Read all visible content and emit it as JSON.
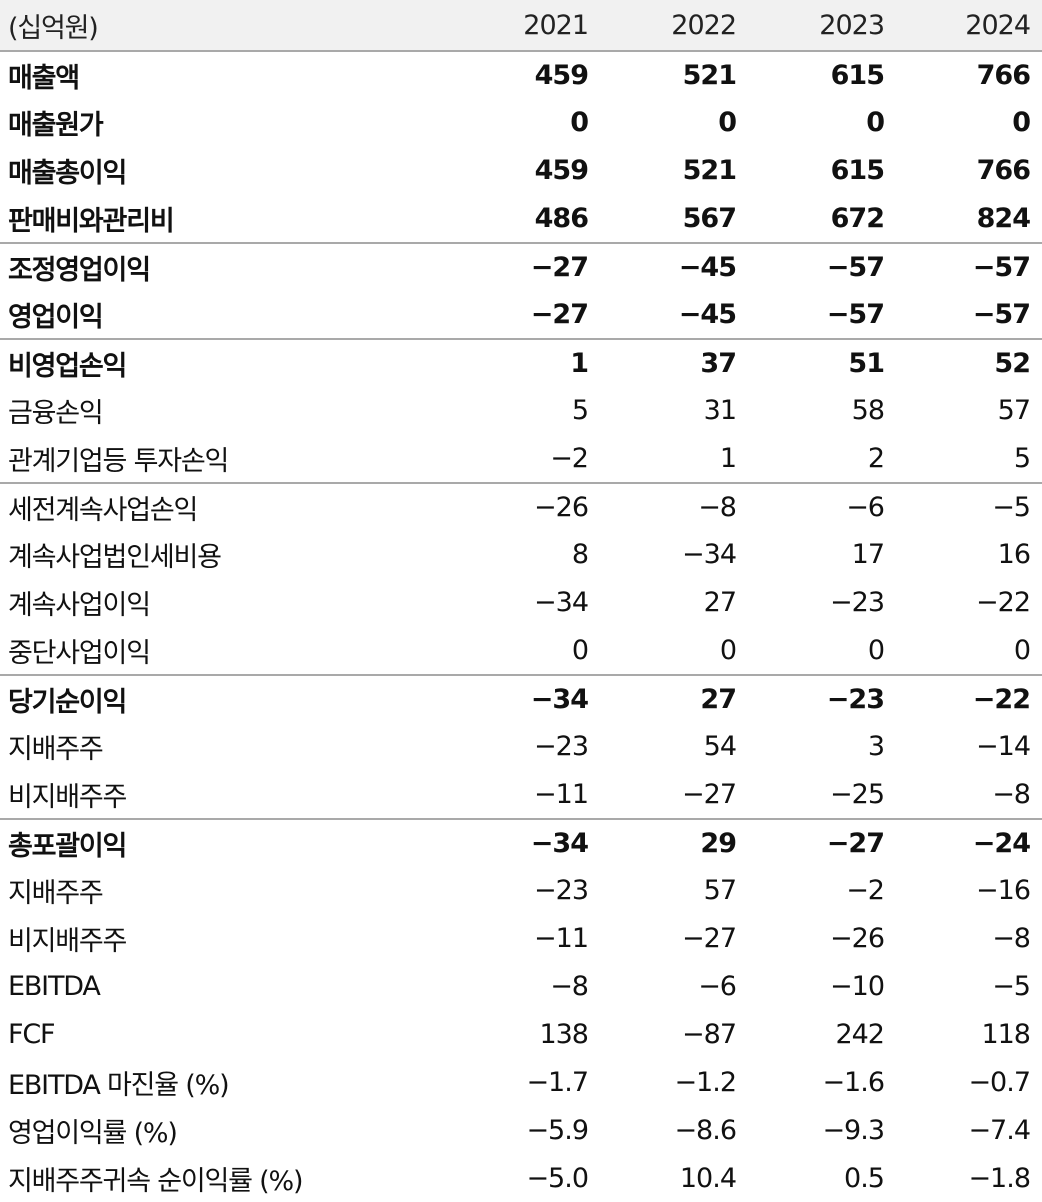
{
  "header": {
    "unit": "(십억원)",
    "years": [
      "2021",
      "2022",
      "2023",
      "2024"
    ]
  },
  "rows": [
    {
      "label": "매출액",
      "values": [
        "459",
        "521",
        "615",
        "766"
      ]
    },
    {
      "label": "매출원가",
      "values": [
        "0",
        "0",
        "0",
        "0"
      ]
    },
    {
      "label": "매출총이익",
      "values": [
        "459",
        "521",
        "615",
        "766"
      ]
    },
    {
      "label": "판매비와관리비",
      "values": [
        "486",
        "567",
        "672",
        "824"
      ]
    },
    {
      "label": "조정영업이익",
      "values": [
        "−27",
        "−45",
        "−57",
        "−57"
      ]
    },
    {
      "label": "영업이익",
      "values": [
        "−27",
        "−45",
        "−57",
        "−57"
      ]
    },
    {
      "label": "비영업손익",
      "values": [
        "1",
        "37",
        "51",
        "52"
      ]
    },
    {
      "label": "금융손익",
      "values": [
        "5",
        "31",
        "58",
        "57"
      ]
    },
    {
      "label": "관계기업등 투자손익",
      "values": [
        "−2",
        "1",
        "2",
        "5"
      ]
    },
    {
      "label": "세전계속사업손익",
      "values": [
        "−26",
        "−8",
        "−6",
        "−5"
      ]
    },
    {
      "label": "계속사업법인세비용",
      "values": [
        "8",
        "−34",
        "17",
        "16"
      ]
    },
    {
      "label": "계속사업이익",
      "values": [
        "−34",
        "27",
        "−23",
        "−22"
      ]
    },
    {
      "label": "중단사업이익",
      "values": [
        "0",
        "0",
        "0",
        "0"
      ]
    },
    {
      "label": "당기순이익",
      "values": [
        "−34",
        "27",
        "−23",
        "−22"
      ]
    },
    {
      "label": "지배주주",
      "values": [
        "−23",
        "54",
        "3",
        "−14"
      ]
    },
    {
      "label": "비지배주주",
      "values": [
        "−11",
        "−27",
        "−25",
        "−8"
      ]
    },
    {
      "label": "총포괄이익",
      "values": [
        "−34",
        "29",
        "−27",
        "−24"
      ]
    },
    {
      "label": "지배주주",
      "values": [
        "−23",
        "57",
        "−2",
        "−16"
      ]
    },
    {
      "label": "비지배주주",
      "values": [
        "−11",
        "−27",
        "−26",
        "−8"
      ]
    },
    {
      "label": "EBITDA",
      "values": [
        "−8",
        "−6",
        "−10",
        "−5"
      ]
    },
    {
      "label": "FCF",
      "values": [
        "138",
        "−87",
        "242",
        "118"
      ]
    },
    {
      "label": "EBITDA 마진율 (%)",
      "values": [
        "−1.7",
        "−1.2",
        "−1.6",
        "−0.7"
      ]
    },
    {
      "label": "영업이익률 (%)",
      "values": [
        "−5.9",
        "−8.6",
        "−9.3",
        "−7.4"
      ]
    },
    {
      "label": "지배주주귀속 순이익률 (%)",
      "values": [
        "−5.0",
        "10.4",
        "0.5",
        "−1.8"
      ]
    }
  ]
}
